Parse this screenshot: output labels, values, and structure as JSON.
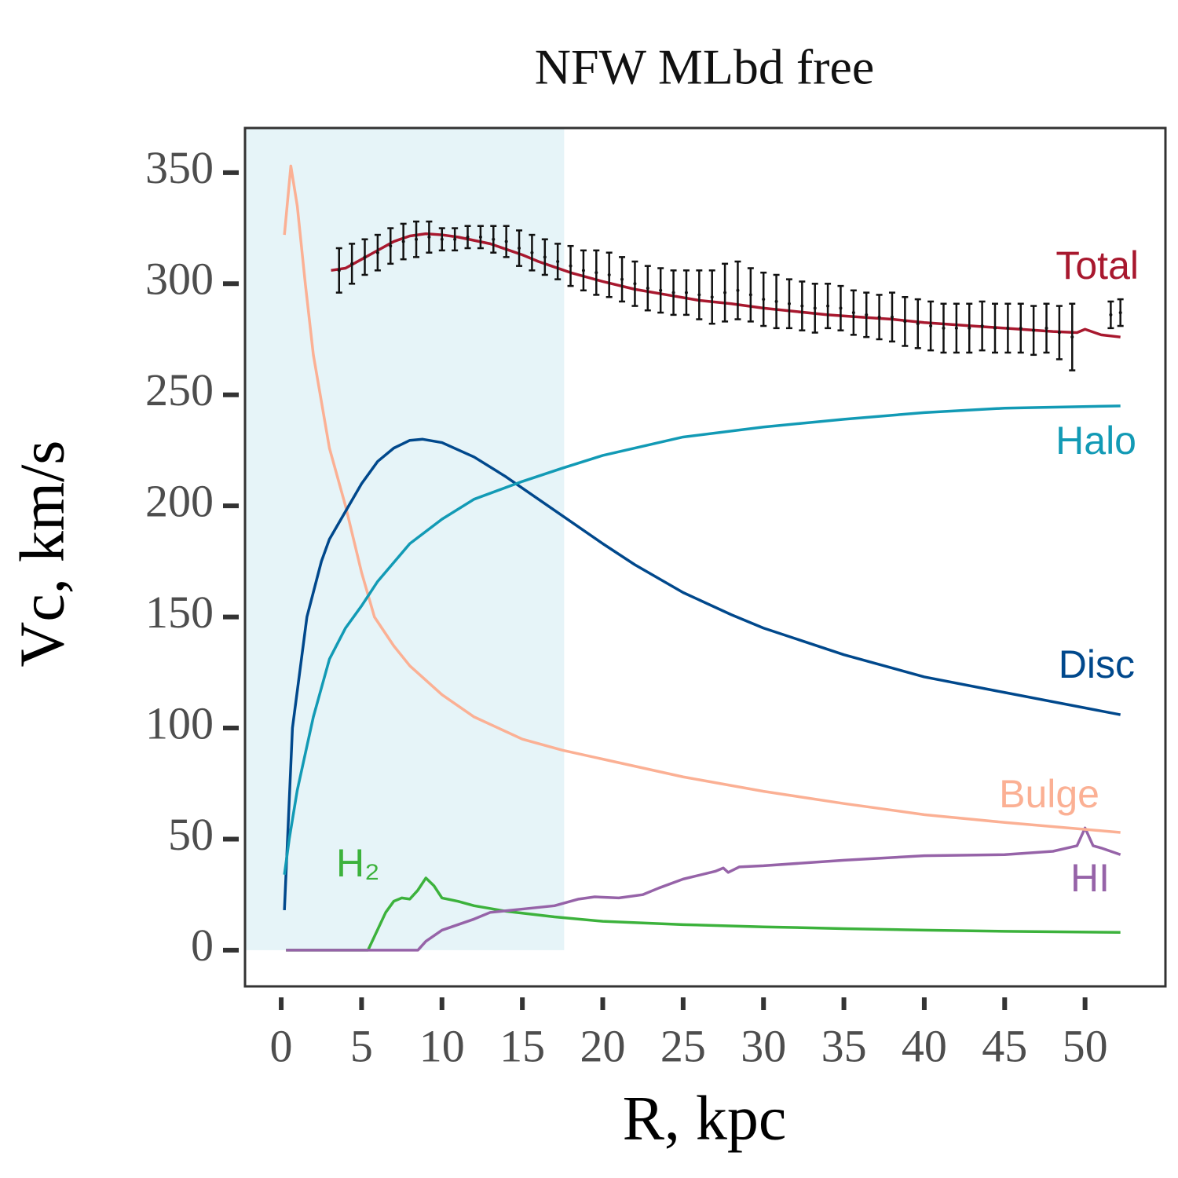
{
  "chart_data": {
    "type": "line",
    "title": "NFW MLbd free",
    "xlabel": "R, kpc",
    "ylabel": "Vc, km/s",
    "xlim": [
      -2.25,
      55.0
    ],
    "ylim": [
      -16.3,
      370.1
    ],
    "xticks": [
      0,
      5,
      10,
      15,
      20,
      25,
      30,
      35,
      40,
      45,
      50
    ],
    "yticks": [
      0,
      50,
      100,
      150,
      200,
      250,
      300,
      350
    ],
    "shaded_span": [
      -2.25,
      17.6
    ],
    "shaded_color": "#e6f4f8",
    "series": [
      {
        "name": "Total",
        "color": "#a8182e",
        "x": [
          3.1,
          4,
          5,
          6,
          7,
          8,
          9,
          10,
          11,
          12,
          13,
          14,
          15,
          16,
          17,
          18,
          20,
          22,
          24,
          26,
          28,
          30,
          32,
          34,
          36,
          38,
          40,
          42,
          44,
          46,
          48,
          49.5,
          50,
          51,
          52.2
        ],
        "values": [
          306,
          307,
          311,
          315,
          319,
          321.5,
          322.5,
          322,
          321,
          319.5,
          318,
          315.5,
          313,
          310,
          307.5,
          305,
          301,
          297.5,
          295,
          292.5,
          291,
          289,
          287.5,
          286,
          285,
          284,
          282.5,
          281.5,
          280.5,
          279.5,
          278.5,
          278,
          279.5,
          277,
          276
        ]
      },
      {
        "name": "Halo",
        "color": "#129ab5",
        "x": [
          0.2,
          0.5,
          1,
          2,
          3,
          4,
          5,
          6,
          8,
          10,
          12,
          15,
          17.5,
          20,
          25,
          30,
          35,
          40,
          45,
          52.2
        ],
        "values": [
          34,
          50,
          72,
          105,
          131,
          145,
          155,
          166,
          183,
          194,
          203,
          211,
          217,
          222.7,
          231,
          235.5,
          239,
          242,
          244,
          245
        ]
      },
      {
        "name": "Disc",
        "color": "#00488c",
        "x": [
          0.2,
          0.7,
          1.6,
          2.5,
          3,
          4.2,
          5,
          6,
          7,
          8,
          8.8,
          10,
          12,
          14,
          16,
          18,
          20,
          22,
          25,
          28,
          30,
          35,
          40,
          45,
          52.2
        ],
        "values": [
          18,
          100,
          150,
          175,
          185,
          200,
          210,
          220,
          226,
          229.5,
          230,
          228.5,
          222,
          213,
          203,
          193,
          183,
          173.5,
          161,
          151,
          145,
          133,
          123,
          116,
          106
        ]
      },
      {
        "name": "Bulge",
        "color": "#fbb094",
        "x": [
          0.2,
          0.6,
          1,
          1.5,
          2,
          3,
          4,
          5,
          5.8,
          7,
          8,
          10,
          12,
          15,
          17.5,
          20,
          25,
          30,
          35,
          40,
          45,
          52.2
        ],
        "values": [
          322,
          353,
          335,
          300,
          268,
          226,
          200,
          170,
          150,
          137,
          128,
          115,
          105,
          95,
          90,
          86,
          78,
          71.5,
          66,
          61,
          57.5,
          53
        ]
      },
      {
        "name": "HI",
        "color": "#9663a8",
        "x": [
          0.3,
          8.5,
          9,
          10,
          12,
          13,
          15,
          17,
          18.5,
          19.5,
          21,
          22.5,
          23.5,
          25,
          27,
          27.5,
          27.8,
          28.5,
          30,
          35,
          40,
          45,
          48,
          49.5,
          50,
          50.5,
          51,
          52.2
        ],
        "values": [
          0,
          0,
          4,
          9,
          14,
          17,
          18.5,
          20,
          23,
          24,
          23.5,
          25,
          28,
          32,
          35.5,
          37,
          35,
          37.5,
          38,
          40.5,
          42.5,
          43,
          44.5,
          47,
          55,
          47,
          46,
          43
        ]
      },
      {
        "name": "H₂",
        "color": "#3cb23c",
        "x": [
          0.3,
          5.4,
          6.5,
          7,
          7.5,
          8,
          8.5,
          9,
          9.5,
          10,
          11,
          12,
          14,
          17,
          20,
          25,
          30,
          35,
          40,
          45,
          52.2
        ],
        "values": [
          0,
          0,
          17,
          22,
          23.5,
          23,
          27,
          32.5,
          29,
          23.5,
          22,
          20,
          17.5,
          15,
          13,
          11.5,
          10.5,
          9.7,
          9,
          8.5,
          8
        ]
      }
    ],
    "points": {
      "color": "#111111",
      "x": [
        3.6,
        4.4,
        5.2,
        6.0,
        6.8,
        7.6,
        8.4,
        9.2,
        10.0,
        10.8,
        11.6,
        12.4,
        13.2,
        14.0,
        14.8,
        15.6,
        16.4,
        17.2,
        18.0,
        18.8,
        19.6,
        20.4,
        21.2,
        22.0,
        22.8,
        23.6,
        24.4,
        25.2,
        26.0,
        26.8,
        27.6,
        28.4,
        29.2,
        30.0,
        30.8,
        31.6,
        32.4,
        33.2,
        34.0,
        34.8,
        35.6,
        36.4,
        37.2,
        38.0,
        38.8,
        39.6,
        40.4,
        41.2,
        42.0,
        42.8,
        43.6,
        44.4,
        45.2,
        46.0,
        46.8,
        47.6,
        48.4,
        49.2,
        51.6,
        52.2
      ],
      "values": [
        306,
        309,
        312,
        314,
        317,
        319,
        320,
        321,
        320,
        320,
        321,
        321,
        320,
        319,
        316,
        314,
        312,
        310,
        308,
        306,
        305,
        304,
        302,
        300,
        298,
        297,
        296,
        296,
        295,
        294,
        296,
        297,
        295,
        293,
        292,
        291,
        290,
        289,
        290,
        289,
        287,
        286,
        285,
        285,
        283,
        282,
        281,
        280,
        280,
        280,
        281,
        280,
        280,
        280,
        279,
        280,
        278,
        276,
        286,
        287
      ],
      "errors": [
        10,
        9,
        8,
        8,
        8,
        8,
        8,
        7,
        5,
        5,
        5,
        5,
        6,
        7,
        8,
        8,
        8,
        8,
        9,
        9,
        10,
        10,
        10,
        10,
        10,
        10,
        10,
        10,
        11,
        12,
        13,
        13,
        12,
        12,
        12,
        11,
        11,
        11,
        10,
        10,
        10,
        10,
        10,
        11,
        11,
        11,
        11,
        11,
        11,
        11,
        11,
        11,
        11,
        11,
        11,
        11,
        12,
        15,
        6,
        6
      ]
    }
  }
}
